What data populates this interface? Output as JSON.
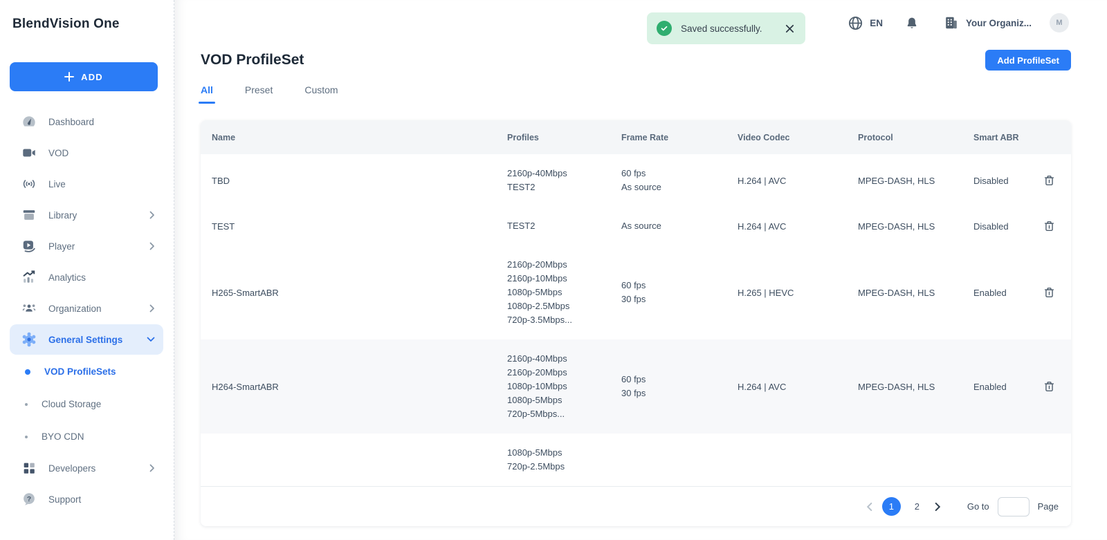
{
  "app": {
    "logo": "BlendVision One"
  },
  "sidebar": {
    "add_button_label": "ADD",
    "items": [
      {
        "label": "Dashboard",
        "icon": "dashboard-icon"
      },
      {
        "label": "VOD",
        "icon": "vod-icon"
      },
      {
        "label": "Live",
        "icon": "live-icon"
      },
      {
        "label": "Library",
        "icon": "library-icon",
        "chevron": "right"
      },
      {
        "label": "Player",
        "icon": "player-icon",
        "chevron": "right"
      },
      {
        "label": "Analytics",
        "icon": "analytics-icon"
      },
      {
        "label": "Organization",
        "icon": "organization-icon",
        "chevron": "right"
      },
      {
        "label": "General Settings",
        "icon": "settings-gear-icon",
        "chevron": "down",
        "active": true
      }
    ],
    "sub_items": [
      {
        "label": "VOD ProfileSets",
        "active": true
      },
      {
        "label": "Cloud Storage"
      },
      {
        "label": "BYO CDN"
      }
    ],
    "bottom_items": [
      {
        "label": "Developers",
        "icon": "developers-icon",
        "chevron": "right"
      },
      {
        "label": "Support",
        "icon": "support-icon"
      }
    ]
  },
  "topbar": {
    "toast": {
      "message": "Saved successfully.",
      "icon": "success-check-icon",
      "close_icon": "close-icon"
    },
    "language": "EN",
    "organization": "Your Organiz...",
    "avatar_initial": "M"
  },
  "page": {
    "title": "VOD ProfileSet",
    "add_button_label": "Add ProfileSet",
    "tabs": [
      {
        "label": "All",
        "active": true
      },
      {
        "label": "Preset"
      },
      {
        "label": "Custom"
      }
    ]
  },
  "table": {
    "columns": [
      "Name",
      "Profiles",
      "Frame Rate",
      "Video Codec",
      "Protocol",
      "Smart ABR"
    ],
    "rows": [
      {
        "name": "TBD",
        "profiles": [
          "2160p-40Mbps",
          "TEST2"
        ],
        "frame_rate": [
          "60 fps",
          "As source"
        ],
        "video_codec": "H.264 | AVC",
        "protocol": "MPEG-DASH, HLS",
        "smart_abr": "Disabled"
      },
      {
        "name": "TEST",
        "profiles": [
          "TEST2"
        ],
        "frame_rate": [
          "As source"
        ],
        "video_codec": "H.264 | AVC",
        "protocol": "MPEG-DASH, HLS",
        "smart_abr": "Disabled"
      },
      {
        "name": "H265-SmartABR",
        "profiles": [
          "2160p-20Mbps",
          "2160p-10Mbps",
          "1080p-5Mbps",
          "1080p-2.5Mbps",
          "720p-3.5Mbps..."
        ],
        "frame_rate": [
          "60 fps",
          "30 fps"
        ],
        "video_codec": "H.265 | HEVC",
        "protocol": "MPEG-DASH, HLS",
        "smart_abr": "Enabled"
      },
      {
        "name": "H264-SmartABR",
        "profiles": [
          "2160p-40Mbps",
          "2160p-20Mbps",
          "1080p-10Mbps",
          "1080p-5Mbps",
          "720p-5Mbps..."
        ],
        "frame_rate": [
          "60 fps",
          "30 fps"
        ],
        "video_codec": "H.264 | AVC",
        "protocol": "MPEG-DASH, HLS",
        "smart_abr": "Enabled",
        "shaded": true
      },
      {
        "name": "",
        "profiles": [
          "1080p-5Mbps",
          "720p-2.5Mbps"
        ],
        "frame_rate": [],
        "video_codec": "",
        "protocol": "",
        "smart_abr": "",
        "partial": true
      }
    ]
  },
  "pagination": {
    "current_page": "1",
    "other_page": "2",
    "goto_label": "Go to",
    "page_label": "Page",
    "goto_value": ""
  },
  "colors": {
    "accent_blue": "#2b7cf6",
    "active_pill_bg": "#e4eefc",
    "success_green": "#2fae6f",
    "toast_bg": "#d9f2e4",
    "table_header_bg": "#f4f6f8",
    "shaded_row_bg": "#f7f8fa"
  }
}
